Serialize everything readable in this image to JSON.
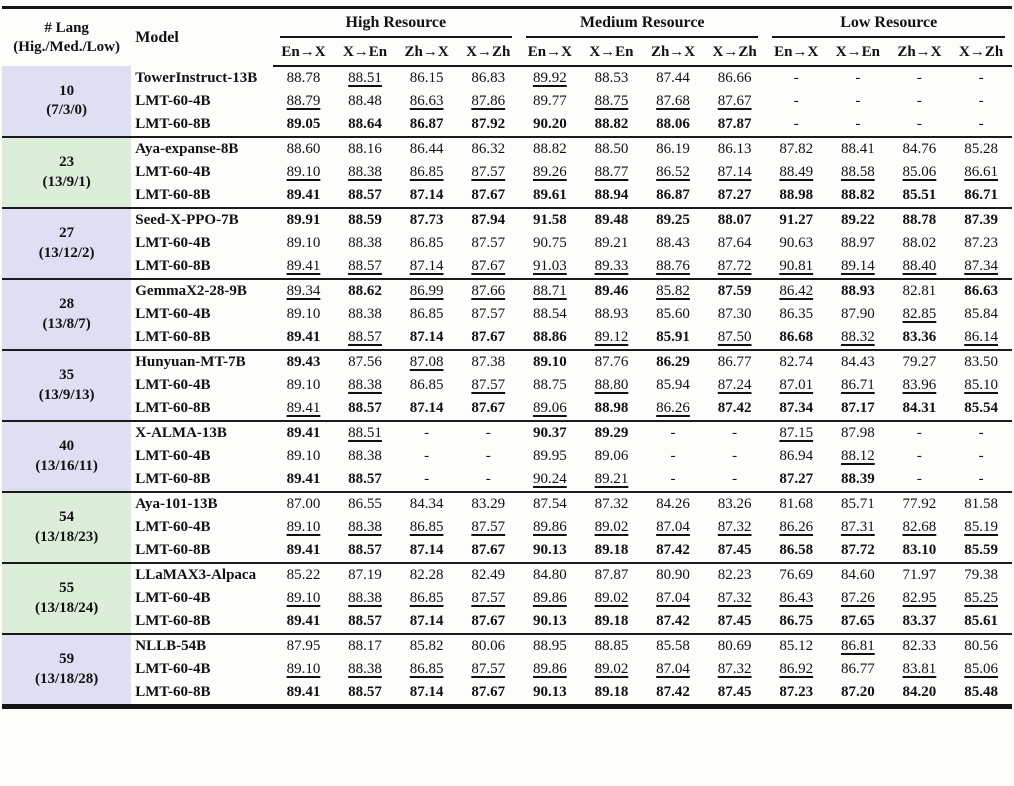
{
  "table": {
    "corner_header": {
      "line1": "# Lang",
      "line2": "(Hig./Med./Low)"
    },
    "model_header": "Model",
    "resource_groups": [
      "High Resource",
      "Medium Resource",
      "Low Resource"
    ],
    "direction_headers": [
      "En→X",
      "X→En",
      "Zh→X",
      "X→Zh"
    ],
    "style_legend": {
      "p": "plain",
      "b": "bold (best)",
      "u": "underline (second best)"
    },
    "colors": {
      "lavender": "#dfdff4",
      "green": "#dcedda",
      "rule": "#151515"
    },
    "groups": [
      {
        "count": "10",
        "split": "(7/3/0)",
        "bg": "lavender",
        "rows": [
          {
            "model": "TowerInstruct-13B",
            "values": [
              "88.78",
              "88.51",
              "86.15",
              "86.83",
              "89.92",
              "88.53",
              "87.44",
              "86.66",
              "-",
              "-",
              "-",
              "-"
            ],
            "styles": "puppuppppppp"
          },
          {
            "model": "LMT-60-4B",
            "values": [
              "88.79",
              "88.48",
              "86.63",
              "87.86",
              "89.77",
              "88.75",
              "87.68",
              "87.67",
              "-",
              "-",
              "-",
              "-"
            ],
            "styles": "upuupuuupppp"
          },
          {
            "model": "LMT-60-8B",
            "values": [
              "89.05",
              "88.64",
              "86.87",
              "87.92",
              "90.20",
              "88.82",
              "88.06",
              "87.87",
              "-",
              "-",
              "-",
              "-"
            ],
            "styles": "bbbbbbbbpppp"
          }
        ]
      },
      {
        "count": "23",
        "split": "(13/9/1)",
        "bg": "green",
        "rows": [
          {
            "model": "Aya-expanse-8B",
            "values": [
              "88.60",
              "88.16",
              "86.44",
              "86.32",
              "88.82",
              "88.50",
              "86.19",
              "86.13",
              "87.82",
              "88.41",
              "84.76",
              "85.28"
            ],
            "styles": "pppppppppppp"
          },
          {
            "model": "LMT-60-4B",
            "values": [
              "89.10",
              "88.38",
              "86.85",
              "87.57",
              "89.26",
              "88.77",
              "86.52",
              "87.14",
              "88.49",
              "88.58",
              "85.06",
              "86.61"
            ],
            "styles": "uuuuuuuuuuuu"
          },
          {
            "model": "LMT-60-8B",
            "values": [
              "89.41",
              "88.57",
              "87.14",
              "87.67",
              "89.61",
              "88.94",
              "86.87",
              "87.27",
              "88.98",
              "88.82",
              "85.51",
              "86.71"
            ],
            "styles": "bbbbbbbbbbbb"
          }
        ]
      },
      {
        "count": "27",
        "split": "(13/12/2)",
        "bg": "lavender",
        "rows": [
          {
            "model": "Seed-X-PPO-7B",
            "values": [
              "89.91",
              "88.59",
              "87.73",
              "87.94",
              "91.58",
              "89.48",
              "89.25",
              "88.07",
              "91.27",
              "89.22",
              "88.78",
              "87.39"
            ],
            "styles": "bbbbbbbbbbbb"
          },
          {
            "model": "LMT-60-4B",
            "values": [
              "89.10",
              "88.38",
              "86.85",
              "87.57",
              "90.75",
              "89.21",
              "88.43",
              "87.64",
              "90.63",
              "88.97",
              "88.02",
              "87.23"
            ],
            "styles": "pppppppppppp"
          },
          {
            "model": "LMT-60-8B",
            "values": [
              "89.41",
              "88.57",
              "87.14",
              "87.67",
              "91.03",
              "89.33",
              "88.76",
              "87.72",
              "90.81",
              "89.14",
              "88.40",
              "87.34"
            ],
            "styles": "uuuuuuuuuuuu"
          }
        ]
      },
      {
        "count": "28",
        "split": "(13/8/7)",
        "bg": "lavender",
        "rows": [
          {
            "model": "GemmaX2-28-9B",
            "values": [
              "89.34",
              "88.62",
              "86.99",
              "87.66",
              "88.71",
              "89.46",
              "85.82",
              "87.59",
              "86.42",
              "88.93",
              "82.81",
              "86.63"
            ],
            "styles": "ubuuubububpb"
          },
          {
            "model": "LMT-60-4B",
            "values": [
              "89.10",
              "88.38",
              "86.85",
              "87.57",
              "88.54",
              "88.93",
              "85.60",
              "87.30",
              "86.35",
              "87.90",
              "82.85",
              "85.84"
            ],
            "styles": "ppppppppppup"
          },
          {
            "model": "LMT-60-8B",
            "values": [
              "89.41",
              "88.57",
              "87.14",
              "87.67",
              "88.86",
              "89.12",
              "85.91",
              "87.50",
              "86.68",
              "88.32",
              "83.36",
              "86.14"
            ],
            "styles": "bubbbubububu"
          }
        ]
      },
      {
        "count": "35",
        "split": "(13/9/13)",
        "bg": "lavender",
        "rows": [
          {
            "model": "Hunyuan-MT-7B",
            "values": [
              "89.43",
              "87.56",
              "87.08",
              "87.38",
              "89.10",
              "87.76",
              "86.29",
              "86.77",
              "82.74",
              "84.43",
              "79.27",
              "83.50"
            ],
            "styles": "bpupbpbppppp"
          },
          {
            "model": "LMT-60-4B",
            "values": [
              "89.10",
              "88.38",
              "86.85",
              "87.57",
              "88.75",
              "88.80",
              "85.94",
              "87.24",
              "87.01",
              "86.71",
              "83.96",
              "85.10"
            ],
            "styles": "pupupupuuuuu"
          },
          {
            "model": "LMT-60-8B",
            "values": [
              "89.41",
              "88.57",
              "87.14",
              "87.67",
              "89.06",
              "88.98",
              "86.26",
              "87.42",
              "87.34",
              "87.17",
              "84.31",
              "85.54"
            ],
            "styles": "ubbbububbbbb"
          }
        ]
      },
      {
        "count": "40",
        "split": "(13/16/11)",
        "bg": "lavender",
        "rows": [
          {
            "model": "X-ALMA-13B",
            "values": [
              "89.41",
              "88.51",
              "-",
              "-",
              "90.37",
              "89.29",
              "-",
              "-",
              "87.15",
              "87.98",
              "-",
              "-"
            ],
            "styles": "buppbbppuppp"
          },
          {
            "model": "LMT-60-4B",
            "values": [
              "89.10",
              "88.38",
              "-",
              "-",
              "89.95",
              "89.06",
              "-",
              "-",
              "86.94",
              "88.12",
              "-",
              "-"
            ],
            "styles": "pppppppppupp"
          },
          {
            "model": "LMT-60-8B",
            "values": [
              "89.41",
              "88.57",
              "-",
              "-",
              "90.24",
              "89.21",
              "-",
              "-",
              "87.27",
              "88.39",
              "-",
              "-"
            ],
            "styles": "bbppuuppbbpp"
          }
        ]
      },
      {
        "count": "54",
        "split": "(13/18/23)",
        "bg": "green",
        "rows": [
          {
            "model": "Aya-101-13B",
            "values": [
              "87.00",
              "86.55",
              "84.34",
              "83.29",
              "87.54",
              "87.32",
              "84.26",
              "83.26",
              "81.68",
              "85.71",
              "77.92",
              "81.58"
            ],
            "styles": "pppppppppppp"
          },
          {
            "model": "LMT-60-4B",
            "values": [
              "89.10",
              "88.38",
              "86.85",
              "87.57",
              "89.86",
              "89.02",
              "87.04",
              "87.32",
              "86.26",
              "87.31",
              "82.68",
              "85.19"
            ],
            "styles": "uuuuuuuuuuuu"
          },
          {
            "model": "LMT-60-8B",
            "values": [
              "89.41",
              "88.57",
              "87.14",
              "87.67",
              "90.13",
              "89.18",
              "87.42",
              "87.45",
              "86.58",
              "87.72",
              "83.10",
              "85.59"
            ],
            "styles": "bbbbbbbbbbbb"
          }
        ]
      },
      {
        "count": "55",
        "split": "(13/18/24)",
        "bg": "green",
        "rows": [
          {
            "model": "LLaMAX3-Alpaca",
            "values": [
              "85.22",
              "87.19",
              "82.28",
              "82.49",
              "84.80",
              "87.87",
              "80.90",
              "82.23",
              "76.69",
              "84.60",
              "71.97",
              "79.38"
            ],
            "styles": "pppppppppppp"
          },
          {
            "model": "LMT-60-4B",
            "values": [
              "89.10",
              "88.38",
              "86.85",
              "87.57",
              "89.86",
              "89.02",
              "87.04",
              "87.32",
              "86.43",
              "87.26",
              "82.95",
              "85.25"
            ],
            "styles": "uuuuuuuuuuuu"
          },
          {
            "model": "LMT-60-8B",
            "values": [
              "89.41",
              "88.57",
              "87.14",
              "87.67",
              "90.13",
              "89.18",
              "87.42",
              "87.45",
              "86.75",
              "87.65",
              "83.37",
              "85.61"
            ],
            "styles": "bbbbbbbbbbbb"
          }
        ]
      },
      {
        "count": "59",
        "split": "(13/18/28)",
        "bg": "lavender",
        "rows": [
          {
            "model": "NLLB-54B",
            "values": [
              "87.95",
              "88.17",
              "85.82",
              "80.06",
              "88.95",
              "88.85",
              "85.58",
              "80.69",
              "85.12",
              "86.81",
              "82.33",
              "80.56"
            ],
            "styles": "pppppppppupp"
          },
          {
            "model": "LMT-60-4B",
            "values": [
              "89.10",
              "88.38",
              "86.85",
              "87.57",
              "89.86",
              "89.02",
              "87.04",
              "87.32",
              "86.92",
              "86.77",
              "83.81",
              "85.06"
            ],
            "styles": "uuuuuuuuupuu"
          },
          {
            "model": "LMT-60-8B",
            "values": [
              "89.41",
              "88.57",
              "87.14",
              "87.67",
              "90.13",
              "89.18",
              "87.42",
              "87.45",
              "87.23",
              "87.20",
              "84.20",
              "85.48"
            ],
            "styles": "bbbbbbbbbbbb"
          }
        ]
      }
    ]
  }
}
